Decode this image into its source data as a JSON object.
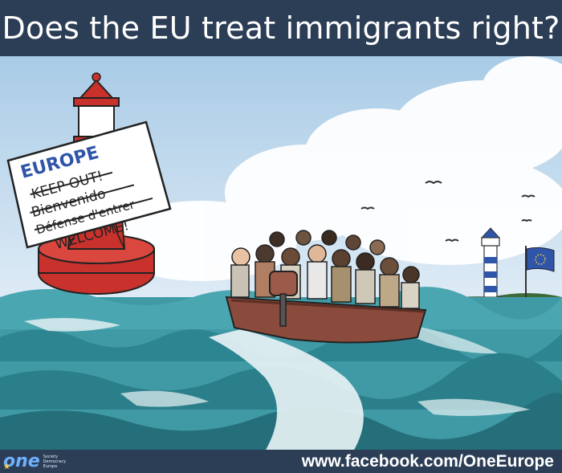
{
  "header": {
    "title": "Does the EU treat immigrants right?"
  },
  "buoy_sign": {
    "line1": "EUROPE",
    "line2": "KEEP OUT!",
    "line3": "Bienvenido",
    "line4": "Défense d'entrer",
    "line5": "WELCOME!"
  },
  "footer": {
    "logo_word": "one",
    "logo_lines": [
      "Society",
      "Democracy",
      "Europe"
    ],
    "url": "www.facebook.com/OneEurope"
  },
  "colors": {
    "title_bar": "#2c3e56",
    "sea": "#3f9aa6",
    "sky": "#c9dff0",
    "buoy_red": "#c8312c",
    "eu_flag": "#2f55a8"
  }
}
